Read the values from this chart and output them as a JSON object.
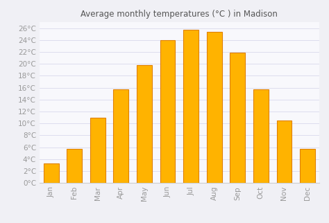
{
  "title": "Average monthly temperatures (°C ) in Madison",
  "months": [
    "Jan",
    "Feb",
    "Mar",
    "Apr",
    "May",
    "Jun",
    "Jul",
    "Aug",
    "Sep",
    "Oct",
    "Nov",
    "Dec"
  ],
  "values": [
    3.3,
    5.7,
    11.0,
    15.7,
    19.8,
    24.0,
    25.8,
    25.4,
    21.9,
    15.7,
    10.5,
    5.7
  ],
  "bar_color": "#FFB300",
  "bar_edge_color": "#E08000",
  "background_color": "#F0F0F5",
  "plot_bg_color": "#F8F8FC",
  "grid_color": "#DDDDEE",
  "ytick_labels": [
    "0°C",
    "2°C",
    "4°C",
    "6°C",
    "8°C",
    "10°C",
    "12°C",
    "14°C",
    "16°C",
    "18°C",
    "20°C",
    "22°C",
    "24°C",
    "26°C"
  ],
  "ytick_values": [
    0,
    2,
    4,
    6,
    8,
    10,
    12,
    14,
    16,
    18,
    20,
    22,
    24,
    26
  ],
  "ylim": [
    0,
    27
  ],
  "title_fontsize": 8.5,
  "tick_fontsize": 7.5,
  "tick_color": "#999999",
  "title_color": "#555555"
}
